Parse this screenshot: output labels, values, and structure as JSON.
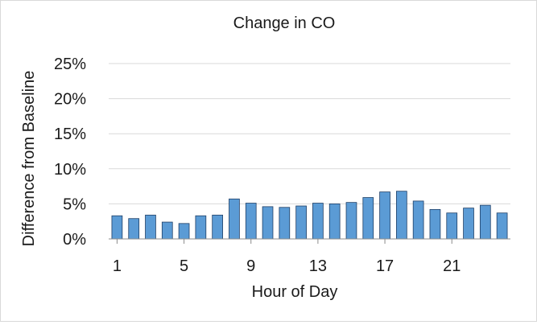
{
  "chart_data": {
    "type": "bar",
    "title": "Change in CO",
    "xlabel": "Hour of Day",
    "ylabel": "Difference from Baseline",
    "ylim": [
      0,
      25
    ],
    "y_ticks": [
      "0%",
      "5%",
      "10%",
      "15%",
      "20%",
      "25%"
    ],
    "y_tick_values": [
      0,
      5,
      10,
      15,
      20,
      25
    ],
    "x_tick_labels": [
      "1",
      "5",
      "9",
      "13",
      "17",
      "21"
    ],
    "x_tick_hours": [
      1,
      5,
      9,
      13,
      17,
      21
    ],
    "grid": true,
    "legend": "none",
    "bar_color": "#5b9bd5",
    "bar_edge_color": "#1f3f66",
    "categories": [
      1,
      2,
      3,
      4,
      5,
      6,
      7,
      8,
      9,
      10,
      11,
      12,
      13,
      14,
      15,
      16,
      17,
      18,
      19,
      20,
      21,
      22,
      23,
      24
    ],
    "values": [
      3.3,
      2.9,
      3.4,
      2.4,
      2.2,
      3.3,
      3.4,
      5.7,
      5.1,
      4.6,
      4.5,
      4.7,
      5.1,
      5.0,
      5.2,
      5.9,
      6.7,
      6.8,
      5.4,
      4.2,
      3.7,
      4.4,
      4.8,
      3.7
    ]
  }
}
